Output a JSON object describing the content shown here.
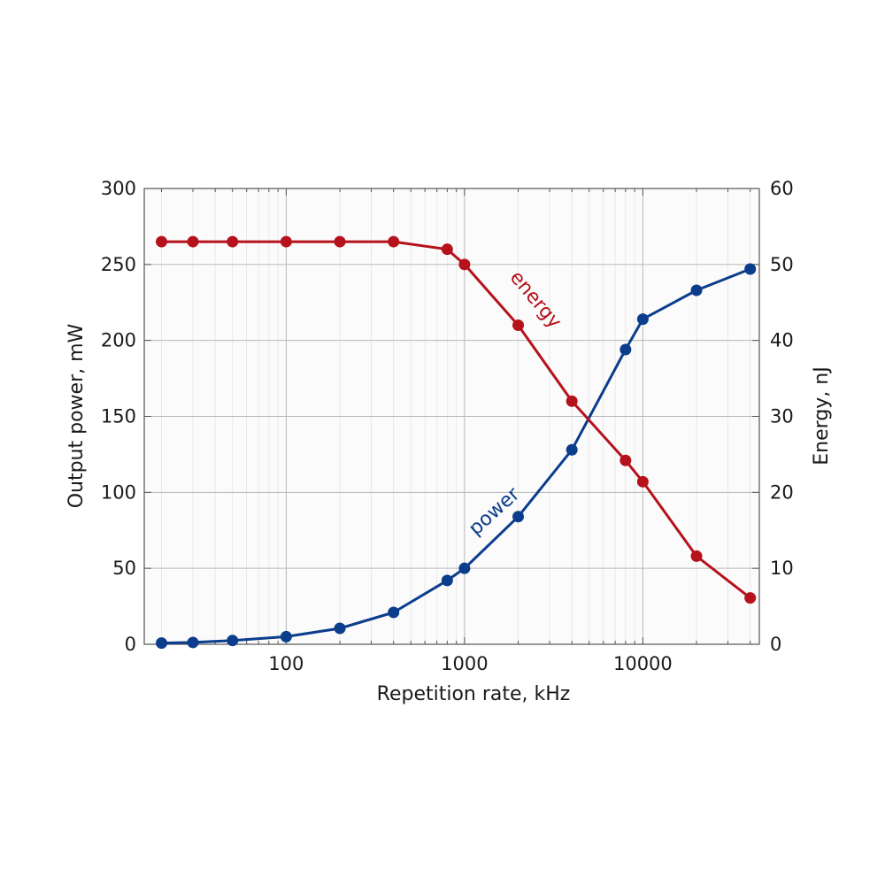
{
  "chart_data": {
    "type": "line",
    "xlabel": "Repetition rate, kHz",
    "ylabel": "Output power, mW",
    "y2label": "Energy, nJ",
    "x_scale": "log",
    "xlim": [
      16,
      45000
    ],
    "ylim": [
      0,
      300
    ],
    "y2lim": [
      0,
      60
    ],
    "x_ticks": [
      100,
      1000,
      10000
    ],
    "x_tick_labels": [
      "100",
      "1000",
      "10000"
    ],
    "y_ticks": [
      0,
      50,
      100,
      150,
      200,
      250,
      300
    ],
    "y_tick_labels": [
      "0",
      "50",
      "100",
      "150",
      "200",
      "250",
      "300"
    ],
    "y2_ticks": [
      0,
      10,
      20,
      30,
      40,
      50,
      60
    ],
    "y2_tick_labels": [
      "0",
      "10",
      "20",
      "30",
      "40",
      "50",
      "60"
    ],
    "grid": true,
    "legend": "none",
    "series": [
      {
        "name": "power",
        "axis": "left",
        "color": "#0b3d8c",
        "x": [
          20,
          30,
          50,
          100,
          200,
          400,
          800,
          1000,
          2000,
          4000,
          8000,
          10000,
          20000,
          40000
        ],
        "y": [
          0.8,
          1.2,
          2.5,
          5,
          10.5,
          21,
          42,
          50,
          84,
          128,
          194,
          214,
          233,
          247
        ]
      },
      {
        "name": "energy",
        "axis": "right",
        "color": "#b5121b",
        "x": [
          20,
          30,
          50,
          100,
          200,
          400,
          800,
          1000,
          2000,
          4000,
          8000,
          10000,
          20000,
          40000
        ],
        "y": [
          53,
          53,
          53,
          53,
          53,
          53,
          52,
          50,
          42,
          32,
          24.2,
          21.4,
          11.6,
          6.1
        ]
      }
    ]
  }
}
